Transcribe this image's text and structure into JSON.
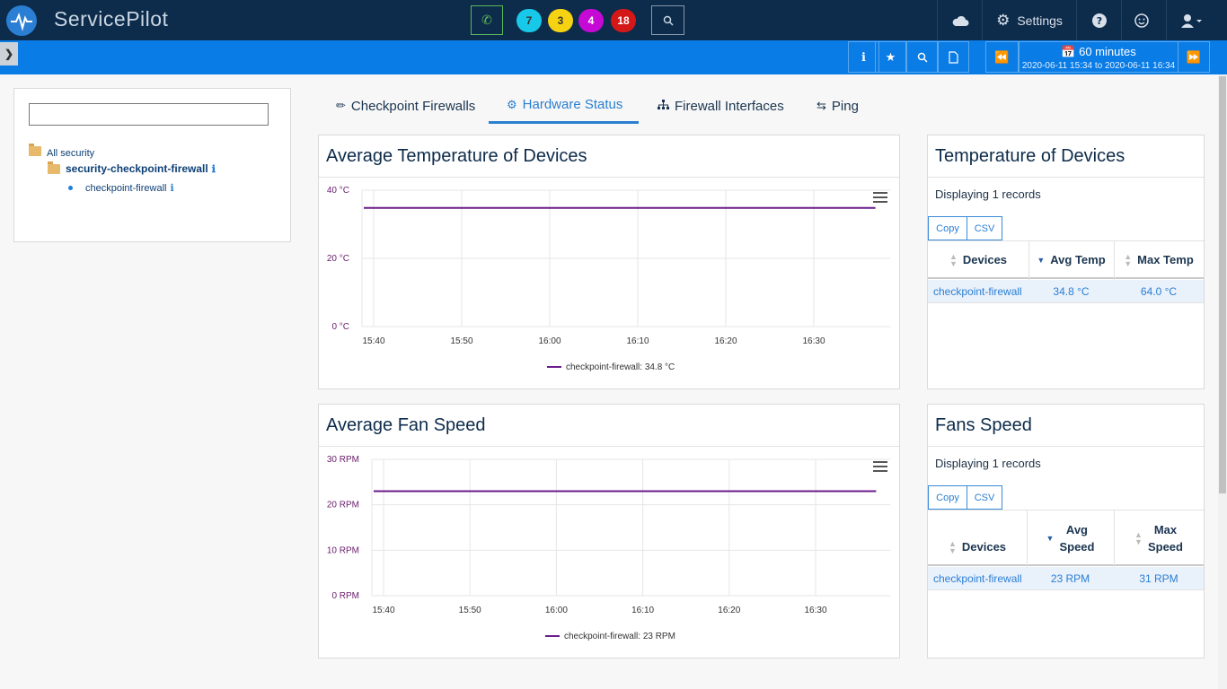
{
  "app": {
    "name": "ServicePilot"
  },
  "topbar": {
    "badges": [
      {
        "value": "7",
        "color": "#17c8e8",
        "text": "#333"
      },
      {
        "value": "3",
        "color": "#f5d312",
        "text": "#333"
      },
      {
        "value": "4",
        "color": "#c60ad6",
        "text": "#ffffff"
      },
      {
        "value": "18",
        "color": "#d41818",
        "text": "#ffffff"
      }
    ],
    "settings_label": "Settings"
  },
  "toolbar": {
    "time_label": "60 minutes",
    "time_from": "2020-06-11 15:34",
    "time_to_word": "to",
    "time_to": "2020-06-11 16:34"
  },
  "tree": {
    "search_value": "",
    "root": "All security",
    "group": "security-checkpoint-firewall",
    "device": "checkpoint-firewall"
  },
  "tabs": [
    {
      "label": "Checkpoint Firewalls",
      "icon": "flame-icon"
    },
    {
      "label": "Hardware Status",
      "icon": "cogs-icon"
    },
    {
      "label": "Firewall Interfaces",
      "icon": "sitemap-icon"
    },
    {
      "label": "Ping",
      "icon": "exchange-icon"
    }
  ],
  "temp_chart": {
    "title": "Average Temperature of Devices",
    "legend": "checkpoint-firewall: 34.8 °C"
  },
  "fan_chart": {
    "title": "Average Fan Speed",
    "legend": "checkpoint-firewall: 23 RPM"
  },
  "chart_data": [
    {
      "type": "line",
      "title": "Average Temperature of Devices",
      "yticks": [
        "40 °C",
        "20 °C",
        "0 °C"
      ],
      "xticks": [
        "15:40",
        "15:50",
        "16:00",
        "16:10",
        "16:20",
        "16:30"
      ],
      "ylim": [
        0,
        40
      ],
      "xlim": [
        "15:34",
        "16:34"
      ],
      "series": [
        {
          "name": "checkpoint-firewall: 34.8 °C",
          "x": [
            "15:34",
            "16:37"
          ],
          "values": [
            34.8,
            34.8
          ],
          "color": "#6a1b8a"
        }
      ]
    },
    {
      "type": "line",
      "title": "Average Fan Speed",
      "yticks": [
        "30 RPM",
        "20 RPM",
        "10 RPM",
        "0 RPM"
      ],
      "xticks": [
        "15:40",
        "15:50",
        "16:00",
        "16:10",
        "16:20",
        "16:30"
      ],
      "ylim": [
        0,
        30
      ],
      "xlim": [
        "15:34",
        "16:34"
      ],
      "series": [
        {
          "name": "checkpoint-firewall: 23 RPM",
          "x": [
            "15:34",
            "16:37"
          ],
          "values": [
            23,
            23
          ],
          "color": "#6a1b8a"
        }
      ]
    }
  ],
  "temp_table": {
    "title": "Temperature of Devices",
    "records": "Displaying 1 records",
    "copy": "Copy",
    "csv": "CSV",
    "headers": [
      "Devices",
      "Avg Temp",
      "Max Temp"
    ],
    "row": [
      "checkpoint-firewall",
      "34.8 °C",
      "64.0 °C"
    ]
  },
  "fan_table": {
    "title": "Fans Speed",
    "records": "Displaying 1 records",
    "copy": "Copy",
    "csv": "CSV",
    "headers": [
      "Devices",
      "Avg\nSpeed",
      "Max\nSpeed"
    ],
    "h1": "Avg",
    "h1b": "Speed",
    "h2": "Max",
    "h2b": "Speed",
    "row": [
      "checkpoint-firewall",
      "23 RPM",
      "31 RPM"
    ]
  }
}
